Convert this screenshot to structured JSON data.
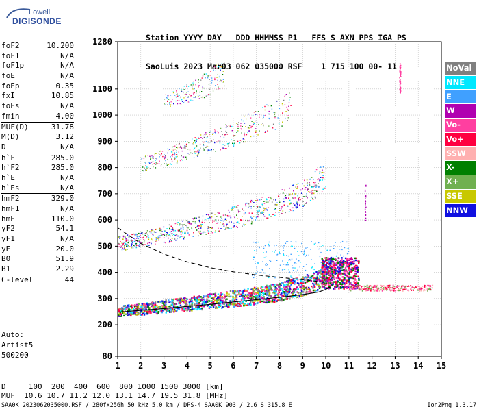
{
  "logo": {
    "line1": "Lowell",
    "line2": "DIGISONDE"
  },
  "header": {
    "row1": "Station YYYY DAY   DDD HHMMSS P1   FFS S AXN PPS IGA PS",
    "row2": "SaoLuis 2023 Mar03 062 035000 RSF    1 715 100 00- 11"
  },
  "params": [
    {
      "label": "foF2",
      "value": "10.200"
    },
    {
      "label": "foF1",
      "value": "N/A"
    },
    {
      "label": "foF1p",
      "value": "N/A"
    },
    {
      "label": "foE",
      "value": "N/A"
    },
    {
      "label": "foEp",
      "value": "0.35"
    },
    {
      "label": "fxI",
      "value": "10.85"
    },
    {
      "label": "foEs",
      "value": "N/A"
    },
    {
      "label": "fmin",
      "value": "4.00",
      "sep": true
    },
    {
      "label": "MUF(D)",
      "value": "31.78"
    },
    {
      "label": "M(D)",
      "value": "3.12"
    },
    {
      "label": "D",
      "value": "N/A",
      "sep": true
    },
    {
      "label": "h`F",
      "value": "285.0"
    },
    {
      "label": "h`F2",
      "value": "285.0"
    },
    {
      "label": "h`E",
      "value": "N/A"
    },
    {
      "label": "h`Es",
      "value": "N/A",
      "sep": true
    },
    {
      "label": "hmF2",
      "value": "329.0"
    },
    {
      "label": "hmF1",
      "value": "N/A"
    },
    {
      "label": "hmE",
      "value": "110.0"
    },
    {
      "label": "yF2",
      "value": "54.1"
    },
    {
      "label": "yF1",
      "value": "N/A"
    },
    {
      "label": "yE",
      "value": "20.0"
    },
    {
      "label": "B0",
      "value": "51.9"
    },
    {
      "label": "B1",
      "value": "2.29",
      "sep": true
    },
    {
      "label": "C-level",
      "value": "44",
      "sep": true
    }
  ],
  "auto": {
    "line1": "Auto:",
    "line2": "Artist5",
    "line3": "500200"
  },
  "legend": [
    {
      "label": "NoVal",
      "color": "#808080"
    },
    {
      "label": "NNE",
      "color": "#00e8ff"
    },
    {
      "label": "E",
      "color": "#40a0ff"
    },
    {
      "label": "W",
      "color": "#b000b0"
    },
    {
      "label": "Vo-",
      "color": "#ff3fa0"
    },
    {
      "label": "Vo+",
      "color": "#ff0040"
    },
    {
      "label": "SSW",
      "color": "#ffb0b0"
    },
    {
      "label": "X-",
      "color": "#008000"
    },
    {
      "label": "X+",
      "color": "#70b050"
    },
    {
      "label": "SSE",
      "color": "#c8c800"
    },
    {
      "label": "NNW",
      "color": "#1010e0"
    }
  ],
  "footer": {
    "d_row": "D     100  200  400  600  800 1000 1500 3000 [km]",
    "muf_row": "MUF  10.6 10.7 11.2 12.0 13.1 14.7 19.5 31.8 [MHz]"
  },
  "filebar": "SAA0K_2023062035000.RSF / 280fx256h 50 kHz 5.0 km / DPS-4 SAA0K 903 / 2.6 S 315.8 E",
  "version": "Ion2Png 1.3.17",
  "chart_data": {
    "type": "scatter",
    "title": "",
    "xlabel": "",
    "ylabel": "",
    "xlim": [
      1,
      15
    ],
    "ylim": [
      80,
      1280
    ],
    "x_ticks": [
      1,
      2,
      3,
      4,
      5,
      6,
      7,
      8,
      9,
      10,
      11,
      12,
      13,
      14,
      15
    ],
    "y_ticks": [
      80,
      200,
      300,
      400,
      500,
      600,
      700,
      800,
      900,
      1000,
      1100,
      1280
    ],
    "grid": true,
    "legend_placement": "right",
    "traces": [
      {
        "name": "o-trace",
        "points": [
          [
            1.0,
            255
          ],
          [
            2.0,
            262
          ],
          [
            3.0,
            272
          ],
          [
            4.0,
            282
          ],
          [
            5.0,
            292
          ],
          [
            6.0,
            302
          ],
          [
            7.0,
            314
          ],
          [
            8.0,
            328
          ],
          [
            9.0,
            350
          ],
          [
            9.6,
            372
          ],
          [
            10.0,
            400
          ],
          [
            10.2,
            425
          ]
        ]
      },
      {
        "name": "2F",
        "points": [
          [
            1.0,
            512
          ],
          [
            2.0,
            525
          ],
          [
            3.0,
            545
          ],
          [
            4.0,
            568
          ],
          [
            5.0,
            590
          ],
          [
            6.0,
            612
          ],
          [
            7.0,
            638
          ],
          [
            8.0,
            665
          ],
          [
            9.0,
            705
          ],
          [
            10.0,
            770
          ]
        ]
      },
      {
        "name": "3F",
        "points": [
          [
            2.0,
            815
          ],
          [
            3.0,
            840
          ],
          [
            4.0,
            870
          ],
          [
            5.0,
            900
          ],
          [
            6.0,
            930
          ],
          [
            7.0,
            970
          ],
          [
            8.0,
            1010
          ],
          [
            8.5,
            1040
          ]
        ]
      },
      {
        "name": "4F",
        "points": [
          [
            3.0,
            1050
          ],
          [
            4.0,
            1085
          ],
          [
            5.0,
            1125
          ],
          [
            5.6,
            1165
          ]
        ]
      },
      {
        "name": "dashed-profile",
        "points": [
          [
            1.0,
            570
          ],
          [
            1.5,
            540
          ],
          [
            2.0,
            510
          ],
          [
            3.0,
            470
          ],
          [
            4.0,
            440
          ],
          [
            5.0,
            418
          ],
          [
            6.0,
            402
          ],
          [
            7.0,
            390
          ],
          [
            8.0,
            381
          ],
          [
            9.0,
            372
          ],
          [
            10.0,
            362
          ]
        ]
      },
      {
        "name": "solid-profile",
        "points": [
          [
            1.0,
            248
          ],
          [
            2.0,
            255
          ],
          [
            3.0,
            262
          ],
          [
            4.0,
            270
          ],
          [
            5.0,
            278
          ],
          [
            6.0,
            287
          ],
          [
            7.0,
            296
          ],
          [
            8.0,
            305
          ],
          [
            9.0,
            315
          ],
          [
            9.7,
            325
          ],
          [
            10.0,
            335
          ],
          [
            10.2,
            345
          ]
        ]
      }
    ]
  }
}
